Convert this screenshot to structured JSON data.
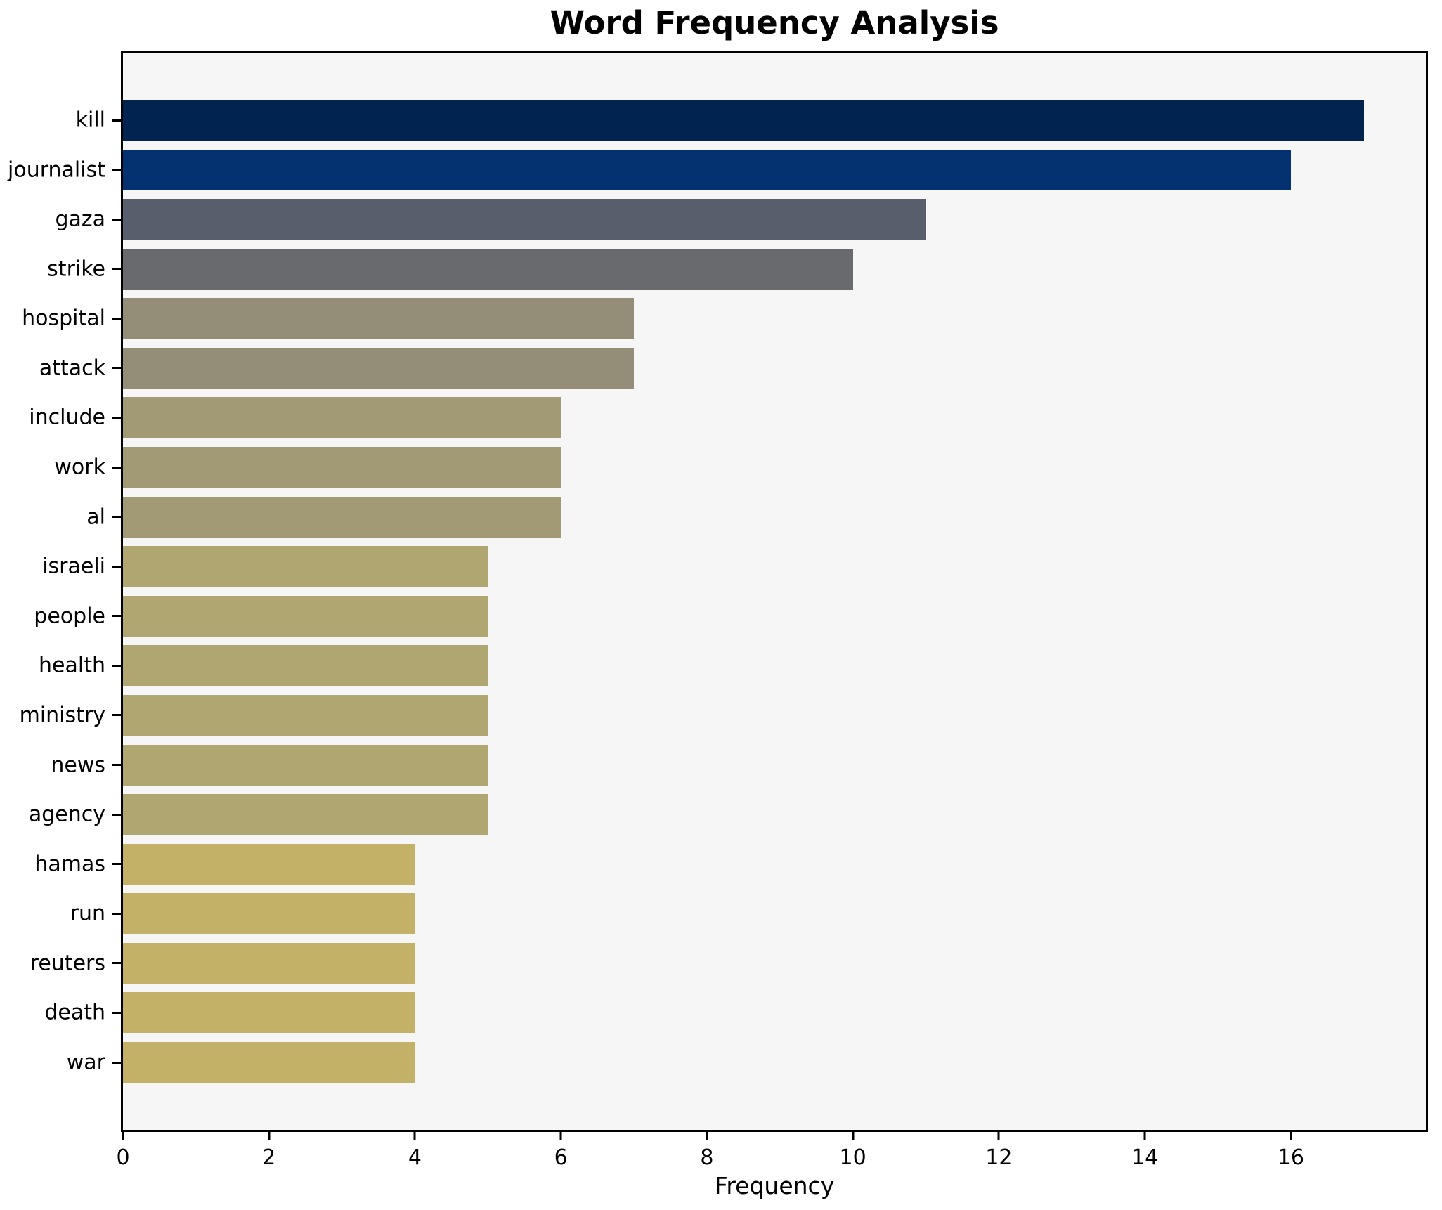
{
  "title": "Word Frequency Analysis",
  "xlabel": "Frequency",
  "chart_data": {
    "type": "bar",
    "orientation": "horizontal",
    "title": "Word Frequency Analysis",
    "xlabel": "Frequency",
    "ylabel": "",
    "grid": false,
    "legend": null,
    "xlim": [
      0,
      17.85
    ],
    "xticks": [
      0,
      2,
      4,
      6,
      8,
      10,
      12,
      14,
      16
    ],
    "categories": [
      "kill",
      "journalist",
      "gaza",
      "strike",
      "hospital",
      "attack",
      "include",
      "work",
      "al",
      "israeli",
      "people",
      "health",
      "ministry",
      "news",
      "agency",
      "hamas",
      "run",
      "reuters",
      "death",
      "war"
    ],
    "values": [
      17,
      16,
      11,
      10,
      7,
      7,
      6,
      6,
      6,
      5,
      5,
      5,
      5,
      5,
      5,
      4,
      4,
      4,
      4,
      4
    ],
    "bar_colors": [
      "#00234f",
      "#04316f",
      "#575f6d",
      "#696a6e",
      "#948e78",
      "#948e78",
      "#a19a74",
      "#a19a74",
      "#a19a74",
      "#b0a671",
      "#b0a671",
      "#b0a671",
      "#b0a671",
      "#b0a671",
      "#b0a671",
      "#c2b166",
      "#c2b166",
      "#c2b166",
      "#c2b166",
      "#c2b166"
    ],
    "colors": {
      "figure_background": "#ffffff",
      "plot_background": "#f6f6f7",
      "spine": "#000000",
      "text": "#000000"
    }
  }
}
